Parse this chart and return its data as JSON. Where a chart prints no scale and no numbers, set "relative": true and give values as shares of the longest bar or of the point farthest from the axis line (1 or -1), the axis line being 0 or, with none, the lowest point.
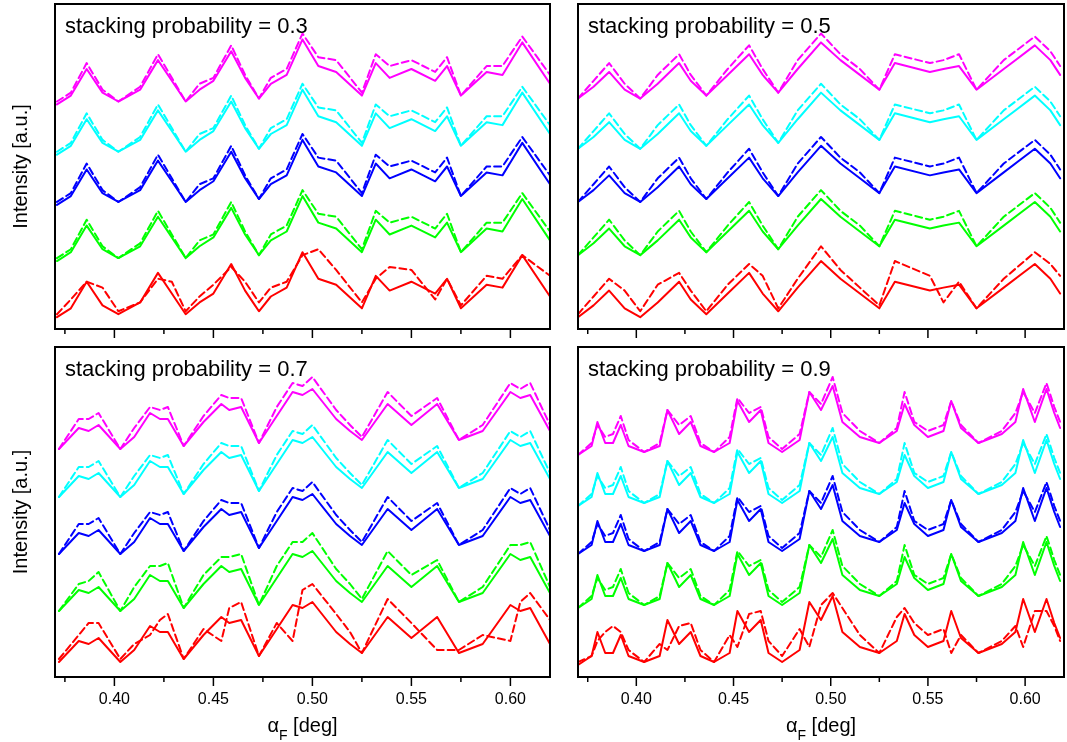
{
  "chart_data": [
    {
      "type": "line",
      "relative": true,
      "title": "stacking probability = 0.3",
      "ylabel": "Intensity [a.u.]",
      "tick_labels": false,
      "xlim": [
        0.37,
        0.62
      ],
      "xticks": [
        {
          "value": 0.375,
          "label": null
        },
        0.4,
        {
          "value": 0.425,
          "label": null
        },
        0.45,
        {
          "value": 0.475,
          "label": null
        },
        0.5,
        {
          "value": 0.525,
          "label": null
        },
        0.55,
        {
          "value": 0.575,
          "label": null
        },
        0.6
      ],
      "x": [
        0.371,
        0.378,
        0.386,
        0.394,
        0.402,
        0.413,
        0.422,
        0.429,
        0.436,
        0.443,
        0.45,
        0.459,
        0.466,
        0.473,
        0.479,
        0.487,
        0.495,
        0.503,
        0.512,
        0.525,
        0.532,
        0.539,
        0.55,
        0.562,
        0.568,
        0.575,
        0.588,
        0.596,
        0.606,
        0.62
      ],
      "series": [
        {
          "color": "#ff0000",
          "line_style": "solid",
          "values": [
            0.04,
            0.07,
            0.16,
            0.08,
            0.05,
            0.09,
            0.19,
            0.12,
            0.05,
            0.09,
            0.12,
            0.22,
            0.13,
            0.06,
            0.11,
            0.14,
            0.26,
            0.17,
            0.15,
            0.07,
            0.18,
            0.13,
            0.16,
            0.12,
            0.17,
            0.07,
            0.15,
            0.14,
            0.25,
            0.11
          ]
        },
        {
          "color": "#ff0000",
          "line_style": "dashed",
          "values": [
            0.05,
            0.1,
            0.16,
            0.14,
            0.06,
            0.09,
            0.17,
            0.16,
            0.06,
            0.11,
            0.15,
            0.21,
            0.16,
            0.09,
            0.14,
            0.16,
            0.25,
            0.27,
            0.2,
            0.09,
            0.17,
            0.21,
            0.2,
            0.1,
            0.17,
            0.08,
            0.18,
            0.17,
            0.25,
            0.18
          ]
        },
        {
          "color": "#00ff00",
          "line_style": "solid",
          "values": [
            0.23,
            0.26,
            0.35,
            0.27,
            0.24,
            0.28,
            0.38,
            0.31,
            0.24,
            0.28,
            0.31,
            0.41,
            0.32,
            0.25,
            0.3,
            0.33,
            0.45,
            0.36,
            0.34,
            0.26,
            0.37,
            0.32,
            0.35,
            0.31,
            0.36,
            0.26,
            0.34,
            0.33,
            0.44,
            0.3
          ]
        },
        {
          "color": "#00ff00",
          "line_style": "dashed",
          "values": [
            0.24,
            0.27,
            0.37,
            0.28,
            0.24,
            0.29,
            0.4,
            0.32,
            0.24,
            0.3,
            0.32,
            0.43,
            0.33,
            0.25,
            0.32,
            0.35,
            0.47,
            0.39,
            0.38,
            0.27,
            0.4,
            0.36,
            0.38,
            0.34,
            0.39,
            0.26,
            0.36,
            0.36,
            0.46,
            0.33
          ]
        },
        {
          "color": "#0000ff",
          "line_style": "solid",
          "values": [
            0.42,
            0.45,
            0.54,
            0.46,
            0.43,
            0.47,
            0.57,
            0.5,
            0.43,
            0.47,
            0.5,
            0.6,
            0.51,
            0.44,
            0.49,
            0.52,
            0.64,
            0.55,
            0.53,
            0.45,
            0.56,
            0.51,
            0.54,
            0.5,
            0.55,
            0.45,
            0.53,
            0.52,
            0.63,
            0.49
          ]
        },
        {
          "color": "#0000ff",
          "line_style": "dashed",
          "values": [
            0.43,
            0.46,
            0.56,
            0.47,
            0.43,
            0.48,
            0.59,
            0.51,
            0.43,
            0.49,
            0.51,
            0.62,
            0.52,
            0.44,
            0.51,
            0.54,
            0.66,
            0.58,
            0.57,
            0.46,
            0.59,
            0.55,
            0.57,
            0.53,
            0.58,
            0.45,
            0.55,
            0.55,
            0.65,
            0.52
          ]
        },
        {
          "color": "#00ffff",
          "line_style": "solid",
          "values": [
            0.59,
            0.62,
            0.71,
            0.63,
            0.6,
            0.64,
            0.74,
            0.67,
            0.6,
            0.64,
            0.67,
            0.77,
            0.68,
            0.61,
            0.66,
            0.69,
            0.81,
            0.72,
            0.7,
            0.62,
            0.73,
            0.68,
            0.71,
            0.67,
            0.72,
            0.62,
            0.7,
            0.69,
            0.8,
            0.66
          ]
        },
        {
          "color": "#00ffff",
          "line_style": "dashed",
          "values": [
            0.6,
            0.63,
            0.73,
            0.64,
            0.6,
            0.65,
            0.76,
            0.68,
            0.6,
            0.66,
            0.68,
            0.79,
            0.69,
            0.61,
            0.68,
            0.71,
            0.83,
            0.75,
            0.74,
            0.63,
            0.76,
            0.72,
            0.74,
            0.7,
            0.75,
            0.62,
            0.72,
            0.72,
            0.82,
            0.69
          ]
        },
        {
          "color": "#ff00ff",
          "line_style": "solid",
          "values": [
            0.76,
            0.79,
            0.88,
            0.8,
            0.77,
            0.81,
            0.91,
            0.84,
            0.77,
            0.81,
            0.84,
            0.94,
            0.85,
            0.78,
            0.83,
            0.86,
            0.98,
            0.89,
            0.87,
            0.79,
            0.9,
            0.85,
            0.88,
            0.84,
            0.89,
            0.79,
            0.87,
            0.86,
            0.97,
            0.83
          ]
        },
        {
          "color": "#ff00ff",
          "line_style": "dashed",
          "values": [
            0.77,
            0.8,
            0.9,
            0.81,
            0.77,
            0.82,
            0.93,
            0.85,
            0.77,
            0.83,
            0.85,
            0.96,
            0.86,
            0.78,
            0.85,
            0.88,
            1.0,
            0.92,
            0.91,
            0.8,
            0.93,
            0.89,
            0.91,
            0.87,
            0.92,
            0.79,
            0.89,
            0.89,
            0.99,
            0.86
          ]
        }
      ]
    },
    {
      "type": "line",
      "relative": true,
      "title": "stacking probability = 0.5",
      "tick_labels": false,
      "xlim": [
        0.37,
        0.62
      ],
      "xticks": [
        {
          "value": 0.375,
          "label": null
        },
        0.4,
        {
          "value": 0.425,
          "label": null
        },
        0.45,
        {
          "value": 0.475,
          "label": null
        },
        0.5,
        {
          "value": 0.525,
          "label": null
        },
        0.55,
        {
          "value": 0.575,
          "label": null
        },
        0.6
      ],
      "x": [
        0.37,
        0.378,
        0.386,
        0.394,
        0.402,
        0.411,
        0.422,
        0.428,
        0.436,
        0.447,
        0.458,
        0.465,
        0.473,
        0.483,
        0.495,
        0.505,
        0.515,
        0.525,
        0.533,
        0.551,
        0.558,
        0.566,
        0.575,
        0.589,
        0.605,
        0.613,
        0.618
      ],
      "series": [
        {
          "color": "#ff0000",
          "line_style": "solid",
          "values": [
            0.04,
            0.08,
            0.13,
            0.07,
            0.04,
            0.09,
            0.16,
            0.1,
            0.05,
            0.12,
            0.19,
            0.12,
            0.06,
            0.14,
            0.23,
            0.17,
            0.12,
            0.07,
            0.16,
            0.13,
            0.14,
            0.15,
            0.07,
            0.14,
            0.22,
            0.17,
            0.12
          ]
        },
        {
          "color": "#ff0000",
          "line_style": "dashed",
          "values": [
            0.05,
            0.11,
            0.17,
            0.13,
            0.06,
            0.15,
            0.19,
            0.13,
            0.06,
            0.15,
            0.22,
            0.18,
            0.07,
            0.17,
            0.28,
            0.2,
            0.14,
            0.08,
            0.23,
            0.18,
            0.09,
            0.16,
            0.07,
            0.17,
            0.26,
            0.22,
            0.18
          ]
        },
        {
          "color": "#00ff00",
          "line_style": "solid",
          "values": [
            0.25,
            0.29,
            0.34,
            0.28,
            0.25,
            0.3,
            0.37,
            0.31,
            0.26,
            0.33,
            0.4,
            0.33,
            0.27,
            0.35,
            0.44,
            0.38,
            0.33,
            0.28,
            0.37,
            0.34,
            0.35,
            0.36,
            0.28,
            0.35,
            0.43,
            0.38,
            0.33
          ]
        },
        {
          "color": "#00ff00",
          "line_style": "dashed",
          "values": [
            0.25,
            0.31,
            0.37,
            0.3,
            0.25,
            0.33,
            0.4,
            0.33,
            0.26,
            0.35,
            0.43,
            0.35,
            0.27,
            0.38,
            0.47,
            0.4,
            0.35,
            0.28,
            0.4,
            0.37,
            0.38,
            0.4,
            0.28,
            0.38,
            0.46,
            0.41,
            0.36
          ]
        },
        {
          "color": "#0000ff",
          "line_style": "solid",
          "values": [
            0.43,
            0.47,
            0.52,
            0.46,
            0.43,
            0.48,
            0.55,
            0.49,
            0.44,
            0.51,
            0.58,
            0.51,
            0.45,
            0.53,
            0.62,
            0.56,
            0.51,
            0.46,
            0.55,
            0.52,
            0.53,
            0.54,
            0.46,
            0.53,
            0.61,
            0.56,
            0.51
          ]
        },
        {
          "color": "#0000ff",
          "line_style": "dashed",
          "values": [
            0.43,
            0.49,
            0.55,
            0.48,
            0.43,
            0.51,
            0.58,
            0.51,
            0.44,
            0.53,
            0.61,
            0.53,
            0.45,
            0.56,
            0.65,
            0.58,
            0.53,
            0.46,
            0.58,
            0.55,
            0.56,
            0.58,
            0.46,
            0.56,
            0.64,
            0.59,
            0.54
          ]
        },
        {
          "color": "#00ffff",
          "line_style": "solid",
          "values": [
            0.61,
            0.65,
            0.7,
            0.64,
            0.61,
            0.66,
            0.73,
            0.67,
            0.62,
            0.69,
            0.76,
            0.69,
            0.63,
            0.71,
            0.8,
            0.74,
            0.69,
            0.64,
            0.73,
            0.7,
            0.71,
            0.72,
            0.64,
            0.71,
            0.79,
            0.74,
            0.69
          ]
        },
        {
          "color": "#00ffff",
          "line_style": "dashed",
          "values": [
            0.61,
            0.67,
            0.73,
            0.66,
            0.61,
            0.69,
            0.76,
            0.69,
            0.62,
            0.71,
            0.79,
            0.71,
            0.63,
            0.74,
            0.83,
            0.76,
            0.71,
            0.64,
            0.76,
            0.73,
            0.74,
            0.76,
            0.64,
            0.74,
            0.82,
            0.77,
            0.72
          ]
        },
        {
          "color": "#ff00ff",
          "line_style": "solid",
          "values": [
            0.78,
            0.82,
            0.87,
            0.81,
            0.78,
            0.83,
            0.9,
            0.84,
            0.79,
            0.86,
            0.93,
            0.86,
            0.8,
            0.88,
            0.97,
            0.91,
            0.86,
            0.81,
            0.9,
            0.87,
            0.88,
            0.89,
            0.81,
            0.88,
            0.96,
            0.91,
            0.86
          ]
        },
        {
          "color": "#ff00ff",
          "line_style": "dashed",
          "values": [
            0.78,
            0.84,
            0.9,
            0.83,
            0.78,
            0.86,
            0.93,
            0.86,
            0.79,
            0.88,
            0.96,
            0.88,
            0.8,
            0.91,
            1.0,
            0.93,
            0.88,
            0.81,
            0.93,
            0.9,
            0.91,
            0.93,
            0.81,
            0.91,
            0.99,
            0.94,
            0.89
          ]
        }
      ]
    },
    {
      "type": "line",
      "relative": true,
      "title": "stacking probability = 0.7",
      "xlabel": "α$_{F}$ [deg]",
      "ylabel": "Intensity [a.u.]",
      "tick_labels": "x",
      "xlim": [
        0.37,
        0.62
      ],
      "xticks": [
        {
          "value": 0.375,
          "label": null
        },
        {
          "value": 0.4,
          "label": "0.40"
        },
        {
          "value": 0.425,
          "label": null
        },
        {
          "value": 0.45,
          "label": "0.45"
        },
        {
          "value": 0.475,
          "label": null
        },
        {
          "value": 0.5,
          "label": "0.50"
        },
        {
          "value": 0.525,
          "label": null
        },
        {
          "value": 0.55,
          "label": "0.55"
        },
        {
          "value": 0.575,
          "label": null
        },
        {
          "value": 0.6,
          "label": "0.60"
        }
      ],
      "x": [
        0.372,
        0.382,
        0.387,
        0.392,
        0.403,
        0.41,
        0.418,
        0.423,
        0.427,
        0.435,
        0.445,
        0.454,
        0.458,
        0.464,
        0.473,
        0.482,
        0.49,
        0.495,
        0.5,
        0.512,
        0.519,
        0.525,
        0.538,
        0.55,
        0.563,
        0.574,
        0.586,
        0.6,
        0.605,
        0.61,
        0.62
      ],
      "series": [
        {
          "color": "#ff0000",
          "line_style": "solid",
          "values": [
            0.05,
            0.12,
            0.11,
            0.13,
            0.05,
            0.09,
            0.17,
            0.15,
            0.15,
            0.06,
            0.14,
            0.2,
            0.18,
            0.19,
            0.07,
            0.16,
            0.24,
            0.23,
            0.25,
            0.15,
            0.11,
            0.08,
            0.2,
            0.13,
            0.2,
            0.08,
            0.11,
            0.24,
            0.22,
            0.23,
            0.11
          ]
        },
        {
          "color": "#ff0000",
          "line_style": "dashed",
          "values": [
            0.06,
            0.14,
            0.18,
            0.18,
            0.06,
            0.11,
            0.14,
            0.19,
            0.21,
            0.06,
            0.16,
            0.12,
            0.23,
            0.25,
            0.07,
            0.18,
            0.12,
            0.29,
            0.31,
            0.21,
            0.15,
            0.08,
            0.26,
            0.18,
            0.09,
            0.09,
            0.14,
            0.12,
            0.25,
            0.28,
            0.19
          ]
        },
        {
          "color": "#00ff00",
          "line_style": "solid",
          "values": [
            0.22,
            0.29,
            0.28,
            0.3,
            0.22,
            0.26,
            0.34,
            0.32,
            0.32,
            0.23,
            0.31,
            0.37,
            0.35,
            0.36,
            0.24,
            0.33,
            0.41,
            0.4,
            0.42,
            0.32,
            0.28,
            0.25,
            0.37,
            0.3,
            0.37,
            0.25,
            0.28,
            0.41,
            0.39,
            0.4,
            0.28
          ]
        },
        {
          "color": "#00ff00",
          "line_style": "dashed",
          "values": [
            0.22,
            0.31,
            0.32,
            0.35,
            0.22,
            0.3,
            0.37,
            0.37,
            0.38,
            0.23,
            0.34,
            0.4,
            0.4,
            0.41,
            0.24,
            0.37,
            0.45,
            0.45,
            0.48,
            0.36,
            0.31,
            0.26,
            0.42,
            0.34,
            0.39,
            0.25,
            0.3,
            0.44,
            0.44,
            0.45,
            0.3
          ]
        },
        {
          "color": "#0000ff",
          "line_style": "solid",
          "values": [
            0.41,
            0.48,
            0.47,
            0.49,
            0.41,
            0.45,
            0.53,
            0.51,
            0.51,
            0.42,
            0.5,
            0.56,
            0.54,
            0.55,
            0.43,
            0.52,
            0.6,
            0.59,
            0.61,
            0.51,
            0.47,
            0.44,
            0.56,
            0.49,
            0.56,
            0.44,
            0.47,
            0.6,
            0.58,
            0.59,
            0.47
          ]
        },
        {
          "color": "#0000ff",
          "line_style": "dashed",
          "values": [
            0.41,
            0.51,
            0.51,
            0.53,
            0.41,
            0.48,
            0.55,
            0.54,
            0.55,
            0.42,
            0.52,
            0.59,
            0.58,
            0.58,
            0.43,
            0.55,
            0.63,
            0.62,
            0.65,
            0.54,
            0.49,
            0.45,
            0.6,
            0.52,
            0.58,
            0.44,
            0.49,
            0.63,
            0.61,
            0.63,
            0.49
          ]
        },
        {
          "color": "#00ffff",
          "line_style": "solid",
          "values": [
            0.6,
            0.67,
            0.66,
            0.68,
            0.6,
            0.64,
            0.72,
            0.7,
            0.7,
            0.61,
            0.69,
            0.75,
            0.73,
            0.74,
            0.62,
            0.71,
            0.79,
            0.78,
            0.8,
            0.7,
            0.66,
            0.63,
            0.75,
            0.68,
            0.75,
            0.63,
            0.66,
            0.79,
            0.77,
            0.78,
            0.66
          ]
        },
        {
          "color": "#00ffff",
          "line_style": "dashed",
          "values": [
            0.6,
            0.7,
            0.7,
            0.72,
            0.6,
            0.67,
            0.74,
            0.73,
            0.74,
            0.61,
            0.71,
            0.78,
            0.77,
            0.77,
            0.62,
            0.74,
            0.82,
            0.81,
            0.84,
            0.73,
            0.68,
            0.64,
            0.79,
            0.71,
            0.77,
            0.63,
            0.68,
            0.82,
            0.8,
            0.82,
            0.68
          ]
        },
        {
          "color": "#ff00ff",
          "line_style": "solid",
          "values": [
            0.76,
            0.83,
            0.82,
            0.84,
            0.76,
            0.8,
            0.88,
            0.86,
            0.86,
            0.77,
            0.85,
            0.91,
            0.89,
            0.9,
            0.78,
            0.87,
            0.95,
            0.94,
            0.96,
            0.86,
            0.82,
            0.79,
            0.91,
            0.84,
            0.91,
            0.79,
            0.82,
            0.95,
            0.93,
            0.94,
            0.82
          ]
        },
        {
          "color": "#ff00ff",
          "line_style": "dashed",
          "values": [
            0.76,
            0.86,
            0.86,
            0.88,
            0.76,
            0.83,
            0.9,
            0.89,
            0.9,
            0.77,
            0.87,
            0.94,
            0.93,
            0.93,
            0.78,
            0.9,
            0.98,
            0.97,
            1.0,
            0.89,
            0.84,
            0.8,
            0.95,
            0.87,
            0.93,
            0.79,
            0.84,
            0.98,
            0.96,
            0.98,
            0.84
          ]
        }
      ]
    },
    {
      "type": "line",
      "relative": true,
      "title": "stacking probability = 0.9",
      "xlabel": "α$_{F}$ [deg]",
      "tick_labels": "x",
      "xlim": [
        0.37,
        0.62
      ],
      "xticks": [
        {
          "value": 0.375,
          "label": null
        },
        {
          "value": 0.4,
          "label": "0.40"
        },
        {
          "value": 0.425,
          "label": null
        },
        {
          "value": 0.45,
          "label": "0.45"
        },
        {
          "value": 0.475,
          "label": null
        },
        {
          "value": 0.5,
          "label": "0.50"
        },
        {
          "value": 0.525,
          "label": null
        },
        {
          "value": 0.55,
          "label": "0.55"
        },
        {
          "value": 0.575,
          "label": null
        },
        {
          "value": 0.6,
          "label": "0.60"
        }
      ],
      "x": [
        0.37,
        0.377,
        0.38,
        0.384,
        0.388,
        0.392,
        0.396,
        0.404,
        0.412,
        0.416,
        0.422,
        0.428,
        0.433,
        0.44,
        0.448,
        0.452,
        0.458,
        0.464,
        0.468,
        0.475,
        0.484,
        0.489,
        0.495,
        0.501,
        0.506,
        0.515,
        0.525,
        0.534,
        0.538,
        0.543,
        0.55,
        0.558,
        0.562,
        0.567,
        0.576,
        0.588,
        0.595,
        0.599,
        0.605,
        0.611,
        0.615,
        0.618
      ],
      "series": [
        {
          "color": "#ff0000",
          "line_style": "solid",
          "values": [
            0.04,
            0.07,
            0.15,
            0.08,
            0.08,
            0.14,
            0.07,
            0.05,
            0.07,
            0.19,
            0.11,
            0.15,
            0.07,
            0.05,
            0.08,
            0.22,
            0.15,
            0.19,
            0.08,
            0.05,
            0.09,
            0.25,
            0.19,
            0.27,
            0.15,
            0.1,
            0.08,
            0.12,
            0.21,
            0.14,
            0.1,
            0.12,
            0.22,
            0.13,
            0.08,
            0.11,
            0.15,
            0.26,
            0.15,
            0.26,
            0.18,
            0.13
          ]
        },
        {
          "color": "#ff0000",
          "line_style": "dashed",
          "values": [
            0.05,
            0.07,
            0.12,
            0.15,
            0.17,
            0.15,
            0.09,
            0.05,
            0.11,
            0.09,
            0.17,
            0.18,
            0.09,
            0.05,
            0.14,
            0.1,
            0.21,
            0.22,
            0.12,
            0.07,
            0.16,
            0.1,
            0.24,
            0.28,
            0.23,
            0.14,
            0.08,
            0.2,
            0.23,
            0.18,
            0.14,
            0.16,
            0.08,
            0.14,
            0.08,
            0.12,
            0.17,
            0.1,
            0.22,
            0.22,
            0.17,
            0.12
          ]
        },
        {
          "color": "#00ff00",
          "line_style": "solid",
          "values": [
            0.23,
            0.26,
            0.34,
            0.27,
            0.27,
            0.33,
            0.26,
            0.24,
            0.26,
            0.38,
            0.3,
            0.34,
            0.26,
            0.24,
            0.27,
            0.41,
            0.34,
            0.38,
            0.27,
            0.24,
            0.28,
            0.44,
            0.38,
            0.46,
            0.34,
            0.29,
            0.27,
            0.31,
            0.4,
            0.33,
            0.29,
            0.31,
            0.41,
            0.32,
            0.27,
            0.3,
            0.34,
            0.45,
            0.34,
            0.45,
            0.37,
            0.32
          ]
        },
        {
          "color": "#00ff00",
          "line_style": "dashed",
          "values": [
            0.23,
            0.27,
            0.33,
            0.29,
            0.3,
            0.36,
            0.28,
            0.24,
            0.27,
            0.38,
            0.33,
            0.36,
            0.27,
            0.24,
            0.29,
            0.42,
            0.37,
            0.39,
            0.29,
            0.25,
            0.3,
            0.44,
            0.4,
            0.49,
            0.37,
            0.31,
            0.27,
            0.32,
            0.44,
            0.34,
            0.31,
            0.33,
            0.41,
            0.33,
            0.27,
            0.31,
            0.37,
            0.44,
            0.37,
            0.47,
            0.39,
            0.34
          ]
        },
        {
          "color": "#0000ff",
          "line_style": "solid",
          "values": [
            0.41,
            0.44,
            0.52,
            0.45,
            0.45,
            0.51,
            0.44,
            0.42,
            0.44,
            0.56,
            0.48,
            0.52,
            0.44,
            0.42,
            0.45,
            0.59,
            0.52,
            0.56,
            0.45,
            0.42,
            0.46,
            0.62,
            0.56,
            0.64,
            0.52,
            0.47,
            0.45,
            0.49,
            0.58,
            0.51,
            0.47,
            0.49,
            0.59,
            0.5,
            0.45,
            0.48,
            0.52,
            0.63,
            0.52,
            0.63,
            0.55,
            0.5
          ]
        },
        {
          "color": "#0000ff",
          "line_style": "dashed",
          "values": [
            0.41,
            0.45,
            0.51,
            0.47,
            0.48,
            0.54,
            0.46,
            0.42,
            0.45,
            0.56,
            0.51,
            0.54,
            0.45,
            0.42,
            0.47,
            0.6,
            0.55,
            0.57,
            0.47,
            0.43,
            0.48,
            0.62,
            0.58,
            0.67,
            0.55,
            0.49,
            0.45,
            0.5,
            0.62,
            0.52,
            0.49,
            0.51,
            0.59,
            0.51,
            0.45,
            0.49,
            0.55,
            0.62,
            0.55,
            0.65,
            0.57,
            0.52
          ]
        },
        {
          "color": "#00ffff",
          "line_style": "solid",
          "values": [
            0.57,
            0.6,
            0.68,
            0.61,
            0.61,
            0.67,
            0.6,
            0.58,
            0.6,
            0.72,
            0.64,
            0.68,
            0.6,
            0.58,
            0.61,
            0.75,
            0.68,
            0.72,
            0.61,
            0.58,
            0.62,
            0.78,
            0.72,
            0.8,
            0.68,
            0.63,
            0.61,
            0.65,
            0.74,
            0.67,
            0.63,
            0.65,
            0.75,
            0.66,
            0.61,
            0.64,
            0.68,
            0.79,
            0.68,
            0.79,
            0.71,
            0.66
          ]
        },
        {
          "color": "#00ffff",
          "line_style": "dashed",
          "values": [
            0.57,
            0.61,
            0.67,
            0.63,
            0.64,
            0.7,
            0.62,
            0.58,
            0.61,
            0.72,
            0.67,
            0.7,
            0.61,
            0.58,
            0.63,
            0.76,
            0.71,
            0.73,
            0.63,
            0.59,
            0.64,
            0.78,
            0.74,
            0.83,
            0.71,
            0.65,
            0.61,
            0.66,
            0.78,
            0.68,
            0.65,
            0.67,
            0.75,
            0.67,
            0.61,
            0.65,
            0.71,
            0.78,
            0.71,
            0.81,
            0.73,
            0.68
          ]
        },
        {
          "color": "#ff00ff",
          "line_style": "solid",
          "values": [
            0.74,
            0.77,
            0.85,
            0.78,
            0.78,
            0.84,
            0.77,
            0.75,
            0.77,
            0.89,
            0.81,
            0.85,
            0.77,
            0.75,
            0.78,
            0.92,
            0.85,
            0.89,
            0.78,
            0.75,
            0.79,
            0.95,
            0.89,
            0.97,
            0.85,
            0.8,
            0.78,
            0.82,
            0.91,
            0.84,
            0.8,
            0.82,
            0.92,
            0.83,
            0.78,
            0.81,
            0.85,
            0.96,
            0.85,
            0.96,
            0.88,
            0.83
          ]
        },
        {
          "color": "#ff00ff",
          "line_style": "dashed",
          "values": [
            0.74,
            0.78,
            0.84,
            0.8,
            0.81,
            0.87,
            0.79,
            0.75,
            0.78,
            0.89,
            0.84,
            0.87,
            0.78,
            0.75,
            0.8,
            0.93,
            0.88,
            0.9,
            0.8,
            0.76,
            0.81,
            0.95,
            0.91,
            1.0,
            0.88,
            0.82,
            0.78,
            0.83,
            0.95,
            0.85,
            0.82,
            0.84,
            0.92,
            0.84,
            0.78,
            0.82,
            0.88,
            0.95,
            0.88,
            0.98,
            0.9,
            0.85
          ]
        }
      ]
    }
  ]
}
